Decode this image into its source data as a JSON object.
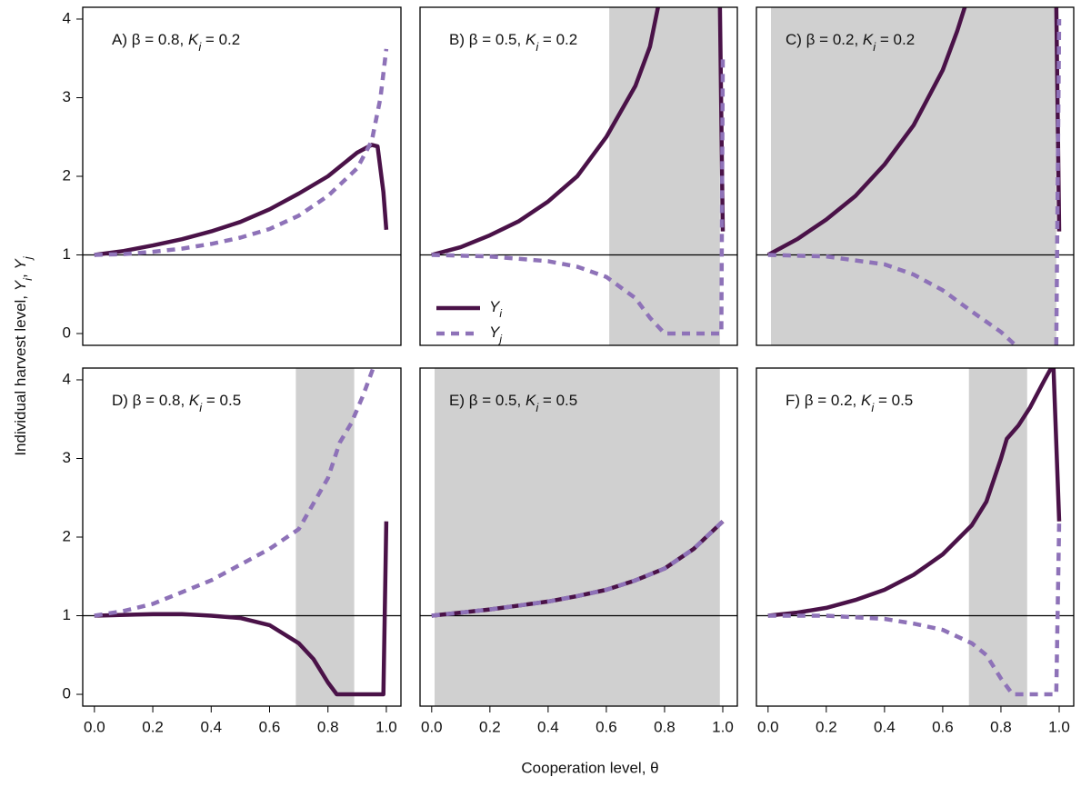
{
  "axis_labels": {
    "y": [
      "Individual harvest level, ",
      "Y",
      "i",
      ", ",
      "Y",
      "j"
    ],
    "x": "Cooperation level, θ"
  },
  "chart_data": [
    {
      "type": "line",
      "title": [
        "A) β = 0.8, ",
        "K",
        "i",
        " = 0.2"
      ],
      "xlim": [
        -0.04,
        1.05
      ],
      "ylim": [
        -0.15,
        4.15
      ],
      "hline": 1,
      "yticks": [
        0,
        1,
        2,
        3,
        4
      ],
      "series": [
        {
          "color": "#4a1248",
          "x": [
            0,
            0.1,
            0.2,
            0.3,
            0.4,
            0.5,
            0.6,
            0.7,
            0.8,
            0.9,
            0.95,
            0.97,
            0.99,
            1.0
          ],
          "values": [
            1,
            1.05,
            1.12,
            1.2,
            1.3,
            1.42,
            1.58,
            1.78,
            2.0,
            2.3,
            2.4,
            2.38,
            1.8,
            1.32
          ]
        },
        {
          "color": "#8e72b8",
          "x": [
            0,
            0.1,
            0.2,
            0.3,
            0.4,
            0.5,
            0.6,
            0.7,
            0.8,
            0.9,
            0.95,
            0.98,
            1.0
          ],
          "values": [
            1,
            1.01,
            1.04,
            1.08,
            1.14,
            1.22,
            1.33,
            1.5,
            1.75,
            2.1,
            2.45,
            3.0,
            3.62
          ]
        }
      ]
    },
    {
      "type": "line",
      "title": [
        "B) β = 0.5, ",
        "K",
        "i",
        " = 0.2"
      ],
      "xlim": [
        -0.04,
        1.05
      ],
      "ylim": [
        -0.15,
        4.15
      ],
      "hline": 1,
      "shade": [
        0.61,
        0.99
      ],
      "legend": true,
      "series": [
        {
          "name": "Yi",
          "color": "#4a1248",
          "x": [
            0,
            0.1,
            0.2,
            0.3,
            0.4,
            0.5,
            0.6,
            0.7,
            0.75,
            0.78,
            0.79,
            0.99,
            1.0
          ],
          "values": [
            1,
            1.1,
            1.25,
            1.43,
            1.68,
            2.0,
            2.5,
            3.15,
            3.65,
            4.2,
            null,
            4.2,
            1.3
          ]
        },
        {
          "name": "Yj",
          "color": "#8e72b8",
          "x": [
            0,
            0.2,
            0.4,
            0.5,
            0.6,
            0.7,
            0.75,
            0.8,
            0.9,
            0.995,
            1.0
          ],
          "values": [
            1,
            0.98,
            0.92,
            0.85,
            0.72,
            0.45,
            0.2,
            0,
            0,
            0,
            3.5
          ]
        }
      ]
    },
    {
      "type": "line",
      "title": [
        "C) β = 0.2, ",
        "K",
        "i",
        " = 0.2"
      ],
      "xlim": [
        -0.04,
        1.05
      ],
      "ylim": [
        -0.15,
        4.15
      ],
      "hline": 1,
      "shade": [
        0.01,
        0.99
      ],
      "series": [
        {
          "color": "#4a1248",
          "x": [
            0,
            0.1,
            0.2,
            0.3,
            0.4,
            0.5,
            0.6,
            0.65,
            0.68,
            0.69,
            0.99,
            1.0
          ],
          "values": [
            1,
            1.2,
            1.45,
            1.75,
            2.15,
            2.65,
            3.35,
            3.85,
            4.2,
            null,
            4.2,
            1.3
          ]
        },
        {
          "color": "#8e72b8",
          "x": [
            0,
            0.2,
            0.4,
            0.5,
            0.6,
            0.7,
            0.8,
            0.85,
            0.86,
            0.99,
            1.0
          ],
          "values": [
            1,
            0.98,
            0.88,
            0.75,
            0.55,
            0.28,
            0.02,
            -0.15,
            null,
            -0.15,
            4.0
          ]
        }
      ]
    },
    {
      "type": "line",
      "title": [
        "D) β = 0.8, ",
        "K",
        "i",
        " = 0.5"
      ],
      "xlim": [
        -0.04,
        1.05
      ],
      "ylim": [
        -0.15,
        4.15
      ],
      "hline": 1,
      "shade": [
        0.69,
        0.89
      ],
      "yticks": [
        0,
        1,
        2,
        3,
        4
      ],
      "xticks": [
        {
          "value": 0,
          "label": "0.0"
        },
        0.2,
        0.4,
        0.6,
        0.8,
        {
          "value": 1,
          "label": "1.0"
        }
      ],
      "series": [
        {
          "color": "#4a1248",
          "x": [
            0,
            0.2,
            0.3,
            0.4,
            0.5,
            0.6,
            0.7,
            0.75,
            0.8,
            0.83,
            0.9,
            0.99,
            1.0
          ],
          "values": [
            1,
            1.02,
            1.02,
            1.0,
            0.97,
            0.88,
            0.65,
            0.45,
            0.15,
            0,
            0,
            0,
            2.2
          ]
        },
        {
          "color": "#8e72b8",
          "x": [
            0,
            0.1,
            0.2,
            0.3,
            0.4,
            0.5,
            0.6,
            0.7,
            0.8,
            0.84,
            0.88,
            0.92,
            0.96,
            0.99,
            1.0
          ],
          "values": [
            1,
            1.06,
            1.15,
            1.3,
            1.45,
            1.65,
            1.85,
            2.1,
            2.75,
            3.2,
            3.45,
            3.8,
            4.2,
            4.2,
            4.2
          ]
        }
      ]
    },
    {
      "type": "line",
      "title": [
        "E) β = 0.5, ",
        "K",
        "i",
        " = 0.5"
      ],
      "xlim": [
        -0.04,
        1.05
      ],
      "ylim": [
        -0.15,
        4.15
      ],
      "hline": 1,
      "shade": [
        0.01,
        0.99
      ],
      "xticks": [
        {
          "value": 0,
          "label": "0.0"
        },
        0.2,
        0.4,
        0.6,
        0.8,
        {
          "value": 1,
          "label": "1.0"
        }
      ],
      "series": [
        {
          "color": "#4a1248",
          "x": [
            0,
            0.1,
            0.2,
            0.3,
            0.4,
            0.5,
            0.6,
            0.7,
            0.8,
            0.9,
            1.0
          ],
          "values": [
            1,
            1.04,
            1.08,
            1.13,
            1.18,
            1.25,
            1.33,
            1.45,
            1.6,
            1.85,
            2.2
          ]
        },
        {
          "color": "#8e72b8",
          "x": [
            0,
            0.1,
            0.2,
            0.3,
            0.4,
            0.5,
            0.6,
            0.7,
            0.8,
            0.9,
            1.0
          ],
          "values": [
            1,
            1.04,
            1.08,
            1.13,
            1.18,
            1.25,
            1.33,
            1.45,
            1.6,
            1.85,
            2.2
          ]
        }
      ]
    },
    {
      "type": "line",
      "title": [
        "F) β = 0.2, ",
        "K",
        "i",
        " = 0.5"
      ],
      "xlim": [
        -0.04,
        1.05
      ],
      "ylim": [
        -0.15,
        4.15
      ],
      "hline": 1,
      "shade": [
        0.69,
        0.89
      ],
      "xticks": [
        {
          "value": 0,
          "label": "0.0"
        },
        0.2,
        0.4,
        0.6,
        0.8,
        {
          "value": 1,
          "label": "1.0"
        }
      ],
      "series": [
        {
          "color": "#4a1248",
          "x": [
            0,
            0.1,
            0.2,
            0.3,
            0.4,
            0.5,
            0.6,
            0.7,
            0.75,
            0.8,
            0.82,
            0.86,
            0.9,
            0.95,
            0.98,
            1.0
          ],
          "values": [
            1,
            1.04,
            1.1,
            1.2,
            1.33,
            1.52,
            1.78,
            2.15,
            2.45,
            3.0,
            3.25,
            3.42,
            3.65,
            4.0,
            4.2,
            2.2
          ]
        },
        {
          "color": "#8e72b8",
          "x": [
            0,
            0.2,
            0.4,
            0.5,
            0.6,
            0.7,
            0.75,
            0.8,
            0.84,
            0.95,
            0.99,
            1.0
          ],
          "values": [
            1,
            1.0,
            0.96,
            0.9,
            0.82,
            0.65,
            0.5,
            0.2,
            0,
            0,
            0,
            2.2
          ]
        }
      ]
    }
  ]
}
